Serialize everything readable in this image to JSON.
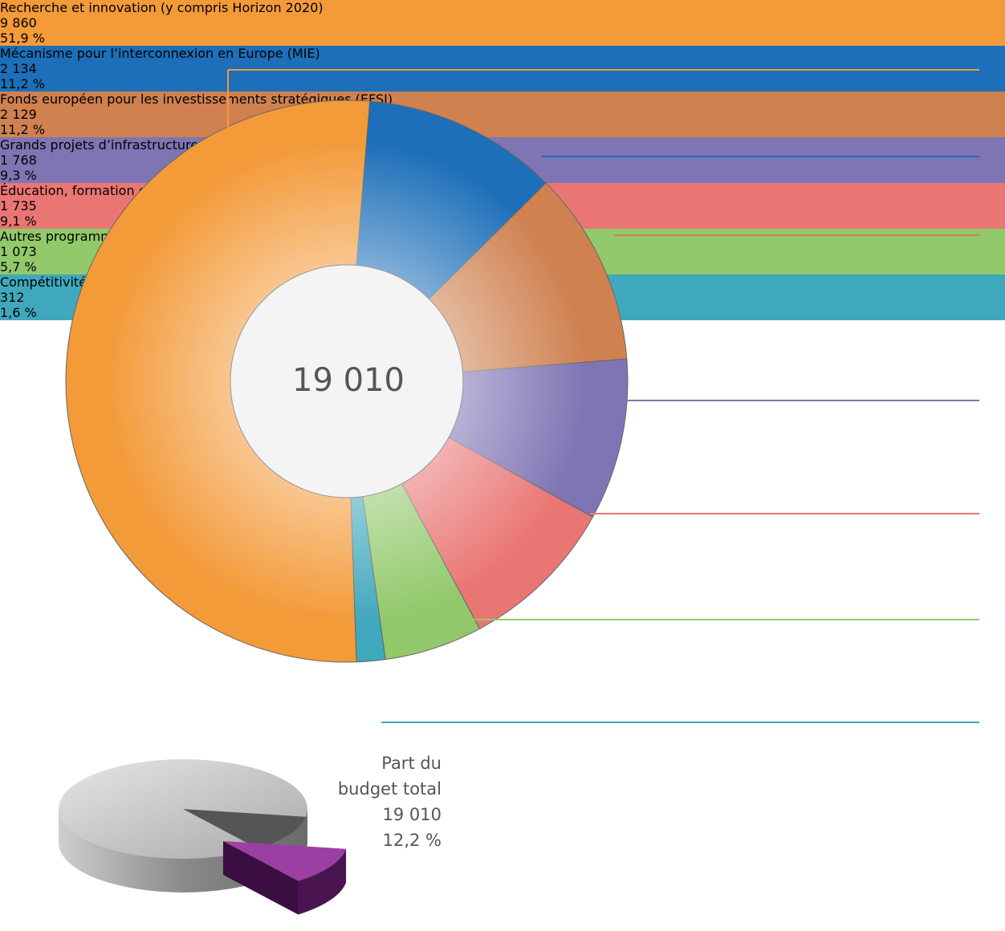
{
  "chart_data": [
    {
      "type": "donut",
      "total": 19010,
      "total_label": "19 010",
      "categories": [
        "Recherche et innovation (y compris Horizon 2020)",
        "Mécanisme pour l’interconnexion en Europe (MIE)",
        "Fonds européen pour les investissements stratégiques (EFSI)",
        "Grands projets d’infrastructures",
        "Éducation, formation et sport (Erasmus+)",
        "Autres programmes",
        "Compétitivité des entreprises et des PME (COSME)"
      ],
      "values": [
        9860,
        2134,
        2129,
        1768,
        1735,
        1073,
        312
      ],
      "value_labels": [
        "9 860",
        "2 134",
        "2 129",
        "1 768",
        "1 735",
        "1 073",
        "312"
      ],
      "percentages": [
        51.9,
        11.2,
        11.2,
        9.3,
        9.1,
        5.7,
        1.6
      ],
      "percentage_labels": [
        "51,9 %",
        "11,2 %",
        "11,2 %",
        "9,3 %",
        "9,1 %",
        "5,7 %",
        "1,6 %"
      ],
      "colors": [
        "#f39a39",
        "#1c6fb8",
        "#cf8150",
        "#7f74b4",
        "#e97673",
        "#92c96b",
        "#40a8bd"
      ]
    },
    {
      "type": "pie3d",
      "title": "Part du budget total",
      "amount": 19010,
      "amount_label": "19 010",
      "value": 12.2,
      "value_label": "12,2 %",
      "color": "#9b3fa3"
    }
  ]
}
